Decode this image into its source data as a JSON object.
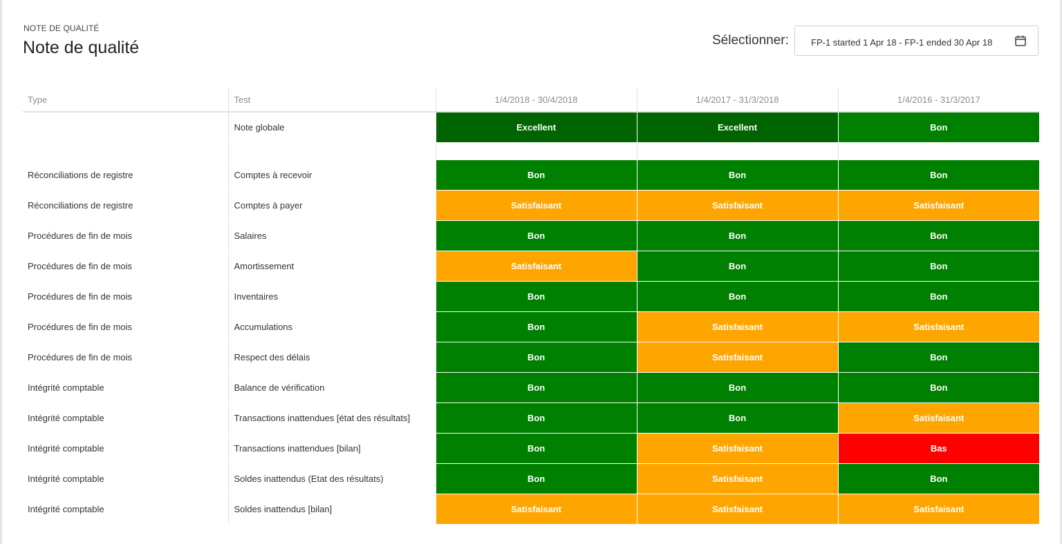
{
  "header": {
    "eyebrow": "NOTE DE QUALITÉ",
    "title": "Note de qualité",
    "selector_label": "Sélectionner:",
    "selector_value": "FP-1 started 1 Apr 18 - FP-1 ended 30 Apr 18",
    "selector_icon": "calendar-icon"
  },
  "columns": {
    "type": "Type",
    "test": "Test",
    "periods": [
      "1/4/2018 - 30/4/2018",
      "1/4/2017 - 31/3/2018",
      "1/4/2016 - 31/3/2017"
    ]
  },
  "colors": {
    "Excellent": "#006400",
    "Bon": "#008000",
    "Satisfaisant": "#FFA500",
    "Bas": "#FF0000"
  },
  "overall": {
    "test": "Note globale",
    "ratings": [
      "Excellent",
      "Excellent",
      "Bon"
    ]
  },
  "rows": [
    {
      "type": "Réconciliations de registre",
      "test": "Comptes à recevoir",
      "ratings": [
        "Bon",
        "Bon",
        "Bon"
      ]
    },
    {
      "type": "Réconciliations de registre",
      "test": "Comptes à payer",
      "ratings": [
        "Satisfaisant",
        "Satisfaisant",
        "Satisfaisant"
      ]
    },
    {
      "type": "Procédures de fin de mois",
      "test": "Salaires",
      "ratings": [
        "Bon",
        "Bon",
        "Bon"
      ]
    },
    {
      "type": "Procédures de fin de mois",
      "test": "Amortissement",
      "ratings": [
        "Satisfaisant",
        "Bon",
        "Bon"
      ]
    },
    {
      "type": "Procédures de fin de mois",
      "test": "Inventaires",
      "ratings": [
        "Bon",
        "Bon",
        "Bon"
      ]
    },
    {
      "type": "Procédures de fin de mois",
      "test": "Accumulations",
      "ratings": [
        "Bon",
        "Satisfaisant",
        "Satisfaisant"
      ]
    },
    {
      "type": "Procédures de fin de mois",
      "test": "Respect des délais",
      "ratings": [
        "Bon",
        "Satisfaisant",
        "Bon"
      ]
    },
    {
      "type": "Intégrité comptable",
      "test": "Balance de vérification",
      "ratings": [
        "Bon",
        "Bon",
        "Bon"
      ]
    },
    {
      "type": "Intégrité comptable",
      "test": "Transactions inattendues [état des résultats]",
      "ratings": [
        "Bon",
        "Bon",
        "Satisfaisant"
      ]
    },
    {
      "type": "Intégrité comptable",
      "test": "Transactions inattendues [bilan]",
      "ratings": [
        "Bon",
        "Satisfaisant",
        "Bas"
      ]
    },
    {
      "type": "Intégrité comptable",
      "test": "Soldes inattendus (Etat des résultats)",
      "ratings": [
        "Bon",
        "Satisfaisant",
        "Bon"
      ]
    },
    {
      "type": "Intégrité comptable",
      "test": "Soldes inattendus [bilan]",
      "ratings": [
        "Satisfaisant",
        "Satisfaisant",
        "Satisfaisant"
      ]
    }
  ]
}
